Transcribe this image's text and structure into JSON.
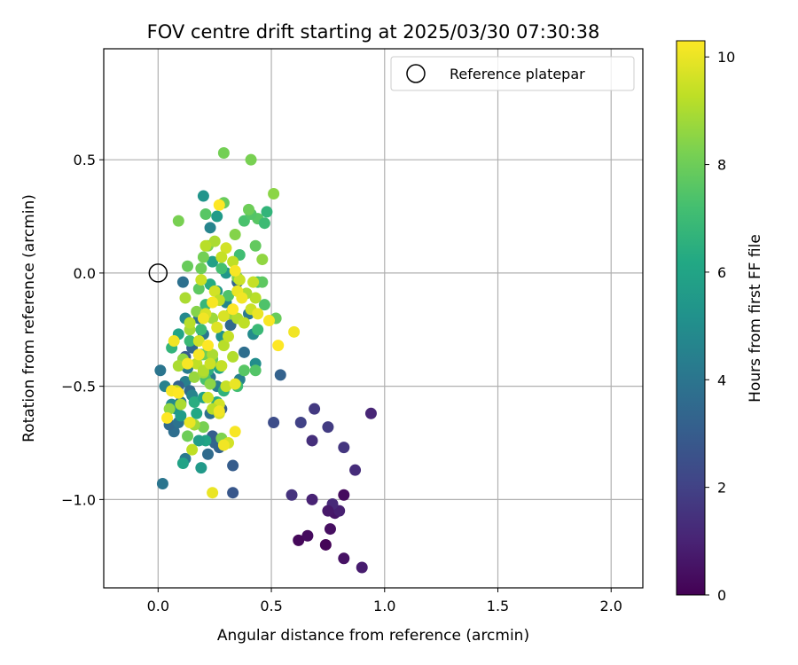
{
  "chart_data": {
    "type": "scatter",
    "title": "FOV centre drift starting at 2025/03/30 07:30:38",
    "xlabel": "Angular distance from reference (arcmin)",
    "ylabel": "Rotation from reference (arcmin)",
    "xlim": [
      -0.24,
      2.14
    ],
    "ylim": [
      -1.39,
      0.99
    ],
    "xticks": [
      0.0,
      0.5,
      1.0,
      1.5,
      2.0
    ],
    "xtick_labels": [
      "0.0",
      "0.5",
      "1.0",
      "1.5",
      "2.0"
    ],
    "yticks": [
      -1.0,
      -0.5,
      0.0,
      0.5
    ],
    "ytick_labels": [
      "−1.0",
      "−0.5",
      "0.0",
      "0.5"
    ],
    "grid": true,
    "legend": {
      "position": "top-right",
      "entries": [
        "Reference platepar"
      ]
    },
    "colorbar": {
      "label": "Hours from first FF file",
      "range": [
        0,
        10.3
      ],
      "ticks": [
        0,
        2,
        4,
        6,
        8,
        10
      ],
      "tick_labels": [
        "0",
        "2",
        "4",
        "6",
        "8",
        "10"
      ],
      "colormap": "viridis"
    },
    "reference_point": {
      "x": 0.0,
      "y": 0.0
    },
    "points": [
      [
        0.62,
        -1.18,
        0.2
      ],
      [
        0.66,
        -1.16,
        0.3
      ],
      [
        0.74,
        -1.2,
        0.1
      ],
      [
        0.76,
        -1.13,
        0.4
      ],
      [
        0.82,
        -1.26,
        0.5
      ],
      [
        0.9,
        -1.3,
        0.8
      ],
      [
        0.78,
        -1.06,
        0.6
      ],
      [
        0.8,
        -1.05,
        0.9
      ],
      [
        0.77,
        -1.02,
        1.2
      ],
      [
        0.75,
        -1.05,
        0.7
      ],
      [
        0.82,
        -0.98,
        0.3
      ],
      [
        0.68,
        -1.0,
        1.0
      ],
      [
        0.59,
        -0.98,
        1.5
      ],
      [
        0.87,
        -0.87,
        1.3
      ],
      [
        0.82,
        -0.77,
        1.6
      ],
      [
        0.68,
        -0.74,
        1.4
      ],
      [
        0.75,
        -0.68,
        1.8
      ],
      [
        0.69,
        -0.6,
        1.7
      ],
      [
        0.63,
        -0.66,
        2.0
      ],
      [
        0.94,
        -0.62,
        1.1
      ],
      [
        0.51,
        -0.66,
        2.4
      ],
      [
        0.33,
        -0.97,
        2.8
      ],
      [
        0.33,
        -0.85,
        3.0
      ],
      [
        0.54,
        -0.45,
        3.2
      ],
      [
        0.25,
        -0.75,
        3.4
      ],
      [
        0.27,
        -0.77,
        3.3
      ],
      [
        0.22,
        -0.8,
        3.6
      ],
      [
        0.24,
        -0.72,
        3.1
      ],
      [
        0.23,
        -0.62,
        3.8
      ],
      [
        0.12,
        -0.82,
        4.1
      ],
      [
        0.02,
        -0.93,
        4.0
      ],
      [
        0.07,
        -0.7,
        3.7
      ],
      [
        0.05,
        -0.67,
        3.5
      ],
      [
        0.09,
        -0.66,
        3.9
      ],
      [
        0.12,
        -0.48,
        4.4
      ],
      [
        0.09,
        -0.5,
        3.2
      ],
      [
        0.1,
        -0.57,
        4.2
      ],
      [
        0.14,
        -0.52,
        3.6
      ],
      [
        0.15,
        -0.54,
        4.6
      ],
      [
        0.12,
        -0.37,
        2.9
      ],
      [
        0.13,
        -0.42,
        4.3
      ],
      [
        0.15,
        -0.33,
        3.4
      ],
      [
        0.18,
        -0.2,
        3.9
      ],
      [
        0.11,
        -0.04,
        3.8
      ],
      [
        0.12,
        -0.2,
        4.8
      ],
      [
        0.2,
        -0.27,
        4.0
      ],
      [
        0.19,
        -0.36,
        4.5
      ],
      [
        0.23,
        -0.46,
        4.2
      ],
      [
        0.26,
        -0.5,
        4.4
      ],
      [
        0.28,
        -0.6,
        3.0
      ],
      [
        0.32,
        -0.23,
        3.5
      ],
      [
        0.3,
        -0.13,
        4.7
      ],
      [
        0.35,
        -0.04,
        3.3
      ],
      [
        0.4,
        -0.18,
        4.1
      ],
      [
        0.42,
        -0.27,
        4.9
      ],
      [
        0.38,
        -0.35,
        3.7
      ],
      [
        0.43,
        -0.4,
        5.0
      ],
      [
        0.36,
        -0.47,
        4.5
      ],
      [
        0.28,
        -0.28,
        5.2
      ],
      [
        0.26,
        -0.08,
        5.5
      ],
      [
        0.23,
        0.2,
        4.6
      ],
      [
        0.2,
        0.34,
        5.3
      ],
      [
        0.24,
        0.05,
        5.8
      ],
      [
        0.3,
        0.0,
        5.4
      ],
      [
        0.26,
        0.25,
        5.6
      ],
      [
        0.01,
        -0.43,
        4.0
      ],
      [
        0.03,
        -0.5,
        4.5
      ],
      [
        0.06,
        -0.58,
        4.8
      ],
      [
        0.08,
        -0.6,
        5.2
      ],
      [
        0.1,
        -0.63,
        5.6
      ],
      [
        0.11,
        -0.84,
        5.9
      ],
      [
        0.19,
        -0.86,
        5.5
      ],
      [
        0.21,
        -0.74,
        6.0
      ],
      [
        0.18,
        -0.74,
        5.7
      ],
      [
        0.17,
        -0.62,
        6.2
      ],
      [
        0.16,
        -0.57,
        6.4
      ],
      [
        0.2,
        -0.55,
        5.9
      ],
      [
        0.26,
        -0.57,
        6.3
      ],
      [
        0.29,
        -0.52,
        6.6
      ],
      [
        0.27,
        -0.42,
        6.1
      ],
      [
        0.22,
        -0.43,
        6.5
      ],
      [
        0.06,
        -0.33,
        6.7
      ],
      [
        0.09,
        -0.27,
        6.0
      ],
      [
        0.14,
        -0.3,
        6.9
      ],
      [
        0.19,
        -0.25,
        7.0
      ],
      [
        0.21,
        -0.14,
        6.8
      ],
      [
        0.23,
        -0.05,
        6.3
      ],
      [
        0.28,
        0.02,
        7.2
      ],
      [
        0.31,
        -0.1,
        7.4
      ],
      [
        0.36,
        0.08,
        7.1
      ],
      [
        0.38,
        0.23,
        7.3
      ],
      [
        0.44,
        0.24,
        7.6
      ],
      [
        0.47,
        0.22,
        7.0
      ],
      [
        0.48,
        0.27,
        6.7
      ],
      [
        0.41,
        0.26,
        7.5
      ],
      [
        0.43,
        0.12,
        7.8
      ],
      [
        0.44,
        -0.04,
        7.2
      ],
      [
        0.46,
        -0.04,
        7.7
      ],
      [
        0.47,
        -0.14,
        7.4
      ],
      [
        0.52,
        -0.2,
        7.9
      ],
      [
        0.44,
        -0.25,
        6.9
      ],
      [
        0.43,
        -0.43,
        7.5
      ],
      [
        0.38,
        -0.43,
        7.6
      ],
      [
        0.35,
        -0.5,
        7.1
      ],
      [
        0.24,
        -0.38,
        7.8
      ],
      [
        0.21,
        -0.47,
        7.3
      ],
      [
        0.2,
        -0.36,
        8.0
      ],
      [
        0.18,
        -0.07,
        7.7
      ],
      [
        0.2,
        0.07,
        8.1
      ],
      [
        0.22,
        0.12,
        8.3
      ],
      [
        0.19,
        0.02,
        8.0
      ],
      [
        0.13,
        0.03,
        7.9
      ],
      [
        0.09,
        0.23,
        8.2
      ],
      [
        0.21,
        0.26,
        7.6
      ],
      [
        0.29,
        0.31,
        7.9
      ],
      [
        0.34,
        0.17,
        8.4
      ],
      [
        0.4,
        0.28,
        8.0
      ],
      [
        0.41,
        0.5,
        8.2
      ],
      [
        0.29,
        0.53,
        8.1
      ],
      [
        0.51,
        0.35,
        8.5
      ],
      [
        0.46,
        0.06,
        8.6
      ],
      [
        0.35,
        -0.02,
        8.3
      ],
      [
        0.32,
        -0.18,
        8.7
      ],
      [
        0.24,
        -0.2,
        8.8
      ],
      [
        0.17,
        -0.17,
        8.4
      ],
      [
        0.14,
        -0.25,
        8.9
      ],
      [
        0.11,
        -0.38,
        8.6
      ],
      [
        0.16,
        -0.46,
        8.7
      ],
      [
        0.2,
        -0.44,
        8.9
      ],
      [
        0.23,
        -0.49,
        8.5
      ],
      [
        0.2,
        -0.68,
        8.2
      ],
      [
        0.16,
        -0.67,
        8.8
      ],
      [
        0.13,
        -0.72,
        8.0
      ],
      [
        0.28,
        -0.73,
        8.3
      ],
      [
        0.1,
        -0.58,
        9.0
      ],
      [
        0.05,
        -0.6,
        8.6
      ],
      [
        0.06,
        -0.52,
        9.1
      ],
      [
        0.08,
        -0.52,
        9.2
      ],
      [
        0.09,
        -0.41,
        9.0
      ],
      [
        0.17,
        -0.4,
        9.3
      ],
      [
        0.2,
        -0.43,
        9.1
      ],
      [
        0.24,
        -0.36,
        9.0
      ],
      [
        0.29,
        -0.32,
        9.2
      ],
      [
        0.31,
        -0.28,
        9.4
      ],
      [
        0.35,
        -0.2,
        9.1
      ],
      [
        0.38,
        -0.22,
        9.3
      ],
      [
        0.41,
        -0.16,
        9.5
      ],
      [
        0.43,
        -0.11,
        9.2
      ],
      [
        0.42,
        -0.04,
        9.4
      ],
      [
        0.39,
        -0.09,
        9.0
      ],
      [
        0.36,
        -0.03,
        9.5
      ],
      [
        0.33,
        0.05,
        9.3
      ],
      [
        0.3,
        0.11,
        9.6
      ],
      [
        0.28,
        0.07,
        9.4
      ],
      [
        0.25,
        0.14,
        9.0
      ],
      [
        0.21,
        0.12,
        9.2
      ],
      [
        0.19,
        -0.03,
        9.5
      ],
      [
        0.25,
        -0.08,
        9.6
      ],
      [
        0.27,
        -0.12,
        9.3
      ],
      [
        0.29,
        -0.19,
        9.7
      ],
      [
        0.33,
        -0.37,
        9.1
      ],
      [
        0.28,
        -0.41,
        9.4
      ],
      [
        0.23,
        -0.4,
        9.5
      ],
      [
        0.18,
        -0.3,
        9.6
      ],
      [
        0.14,
        -0.22,
        9.2
      ],
      [
        0.12,
        -0.11,
        9.0
      ],
      [
        0.21,
        -0.18,
        9.7
      ],
      [
        0.26,
        -0.24,
        9.8
      ],
      [
        0.3,
        -0.5,
        9.4
      ],
      [
        0.27,
        -0.58,
        9.6
      ],
      [
        0.27,
        -0.62,
        9.7
      ],
      [
        0.24,
        -0.6,
        9.2
      ],
      [
        0.22,
        -0.55,
        9.5
      ],
      [
        0.15,
        -0.78,
        9.3
      ],
      [
        0.31,
        -0.75,
        9.6
      ],
      [
        0.29,
        -0.76,
        10.1
      ],
      [
        0.34,
        -0.7,
        10.2
      ],
      [
        0.24,
        -0.97,
        10.0
      ],
      [
        0.27,
        -0.61,
        10.1
      ],
      [
        0.14,
        -0.66,
        10.0
      ],
      [
        0.04,
        -0.64,
        10.3
      ],
      [
        0.07,
        -0.3,
        10.1
      ],
      [
        0.13,
        -0.4,
        10.2
      ],
      [
        0.18,
        -0.36,
        10.2
      ],
      [
        0.22,
        -0.32,
        10.3
      ],
      [
        0.2,
        -0.2,
        10.1
      ],
      [
        0.24,
        -0.13,
        10.2
      ],
      [
        0.27,
        0.3,
        10.3
      ],
      [
        0.34,
        0.01,
        10.2
      ],
      [
        0.35,
        -0.08,
        10.0
      ],
      [
        0.37,
        -0.11,
        10.1
      ],
      [
        0.33,
        -0.16,
        10.3
      ],
      [
        0.44,
        -0.18,
        10.0
      ],
      [
        0.49,
        -0.21,
        10.2
      ],
      [
        0.53,
        -0.32,
        10.3
      ],
      [
        0.6,
        -0.26,
        10.1
      ],
      [
        0.34,
        -0.49,
        10.0
      ],
      [
        0.06,
        -0.52,
        10.2
      ],
      [
        0.09,
        -0.53,
        10.3
      ]
    ]
  }
}
